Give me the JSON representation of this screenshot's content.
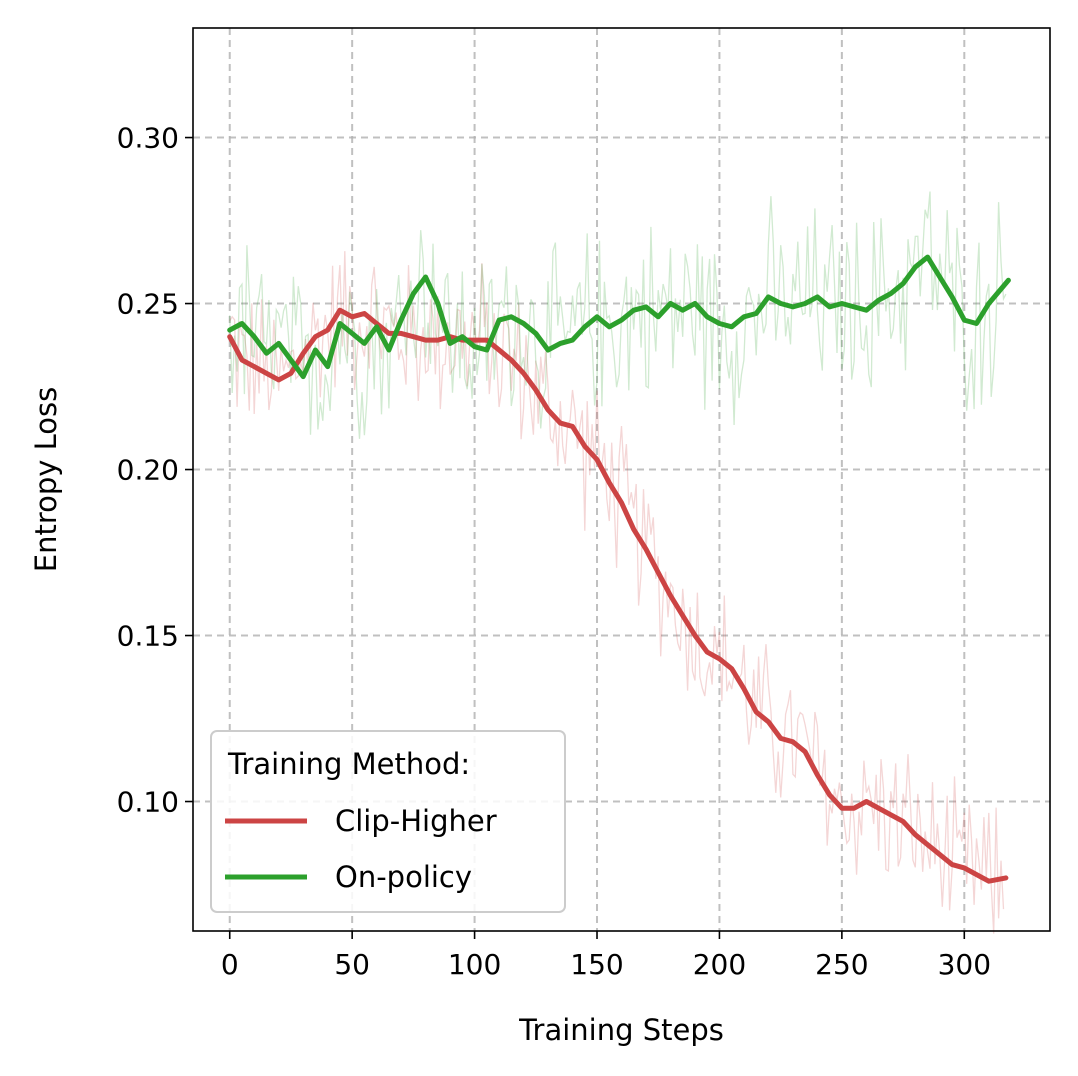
{
  "chart_data": {
    "type": "line",
    "xlabel": "Training Steps",
    "ylabel": "Entropy Loss",
    "xlim": [
      -15,
      335
    ],
    "ylim": [
      0.061,
      0.333
    ],
    "xticks": [
      0,
      50,
      100,
      150,
      200,
      250,
      300
    ],
    "xtick_labels": [
      "0",
      "50",
      "100",
      "150",
      "200",
      "250",
      "300"
    ],
    "yticks": [
      0.1,
      0.15,
      0.2,
      0.25,
      0.3
    ],
    "ytick_labels": [
      "0.10",
      "0.15",
      "0.20",
      "0.25",
      "0.30"
    ],
    "grid": true,
    "legend": {
      "title": "Training Method:",
      "placement": "lower-left"
    },
    "series": [
      {
        "name": "Clip-Higher",
        "color": "#cc4444",
        "x": [
          0,
          5,
          10,
          15,
          20,
          25,
          30,
          35,
          40,
          45,
          50,
          55,
          60,
          65,
          70,
          75,
          80,
          85,
          90,
          95,
          100,
          105,
          110,
          115,
          120,
          125,
          130,
          135,
          140,
          145,
          150,
          155,
          160,
          165,
          170,
          175,
          180,
          185,
          190,
          195,
          200,
          205,
          210,
          215,
          220,
          225,
          230,
          235,
          240,
          245,
          250,
          255,
          260,
          265,
          270,
          275,
          280,
          285,
          290,
          295,
          300,
          305,
          310,
          317
        ],
        "y": [
          0.24,
          0.233,
          0.231,
          0.229,
          0.227,
          0.229,
          0.235,
          0.24,
          0.242,
          0.248,
          0.246,
          0.247,
          0.244,
          0.241,
          0.241,
          0.24,
          0.239,
          0.239,
          0.24,
          0.239,
          0.239,
          0.239,
          0.236,
          0.233,
          0.229,
          0.224,
          0.218,
          0.214,
          0.213,
          0.207,
          0.203,
          0.196,
          0.19,
          0.182,
          0.176,
          0.169,
          0.162,
          0.156,
          0.15,
          0.145,
          0.143,
          0.14,
          0.134,
          0.127,
          0.124,
          0.119,
          0.118,
          0.115,
          0.108,
          0.102,
          0.098,
          0.098,
          0.1,
          0.098,
          0.096,
          0.094,
          0.09,
          0.087,
          0.084,
          0.081,
          0.08,
          0.078,
          0.076,
          0.077
        ]
      },
      {
        "name": "On-policy",
        "color": "#2ca02c",
        "x": [
          0,
          5,
          10,
          15,
          20,
          25,
          30,
          35,
          40,
          45,
          50,
          55,
          60,
          65,
          70,
          75,
          80,
          85,
          90,
          95,
          100,
          105,
          110,
          115,
          120,
          125,
          130,
          135,
          140,
          145,
          150,
          155,
          160,
          165,
          170,
          175,
          180,
          185,
          190,
          195,
          200,
          205,
          210,
          215,
          220,
          225,
          230,
          235,
          240,
          245,
          250,
          255,
          260,
          265,
          270,
          275,
          280,
          285,
          290,
          295,
          300,
          305,
          310,
          318
        ],
        "y": [
          0.242,
          0.244,
          0.24,
          0.235,
          0.238,
          0.233,
          0.228,
          0.236,
          0.231,
          0.244,
          0.241,
          0.238,
          0.243,
          0.236,
          0.245,
          0.253,
          0.258,
          0.25,
          0.238,
          0.24,
          0.237,
          0.236,
          0.245,
          0.246,
          0.244,
          0.241,
          0.236,
          0.238,
          0.239,
          0.243,
          0.246,
          0.243,
          0.245,
          0.248,
          0.249,
          0.246,
          0.25,
          0.248,
          0.25,
          0.246,
          0.244,
          0.243,
          0.246,
          0.247,
          0.252,
          0.25,
          0.249,
          0.25,
          0.252,
          0.249,
          0.25,
          0.249,
          0.248,
          0.251,
          0.253,
          0.256,
          0.261,
          0.264,
          0.258,
          0.252,
          0.245,
          0.244,
          0.25,
          0.257
        ]
      }
    ]
  }
}
